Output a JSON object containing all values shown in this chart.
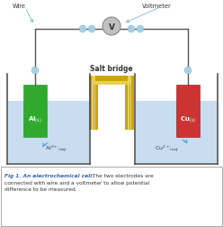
{
  "bg_color": "#ffffff",
  "wire_color": "#555555",
  "connector_color_face": "#b8d8e8",
  "connector_color_edge": "#7ab8d4",
  "voltmeter_face": "#c0c0c0",
  "voltmeter_edge": "#888888",
  "salt_bridge_outer": "#c8a800",
  "salt_bridge_inner": "#e8d050",
  "beaker_edge": "#444444",
  "water_color": "#c8ddf0",
  "al_color": "#2faa2f",
  "al_edge": "#228822",
  "cu_color": "#cc3333",
  "cu_edge": "#991111",
  "sb_tube_color": "#e0d090",
  "arrow_color": "#5599cc",
  "text_dark": "#333333",
  "text_blue": "#3366aa",
  "caption_italic_bold": "Fig 1. An electrochemical cell.",
  "caption_rest": " The two electrodes are connected with wire and a voltmeter to allow potential difference to be measured.",
  "salt_label": "Salt bridge",
  "wire_label": "Wire",
  "voltmeter_label": "Voltmeter",
  "al_label": "Al",
  "al_sub": "(s)",
  "cu_label": "Cu",
  "cu_sub": "(s)",
  "al_ion": "Al",
  "al_ion_sup": "3+",
  "al_ion_sub": "(aq)",
  "cu_ion": "Cu",
  "cu_ion_sup": "2+",
  "cu_ion_sub": "(aq)"
}
